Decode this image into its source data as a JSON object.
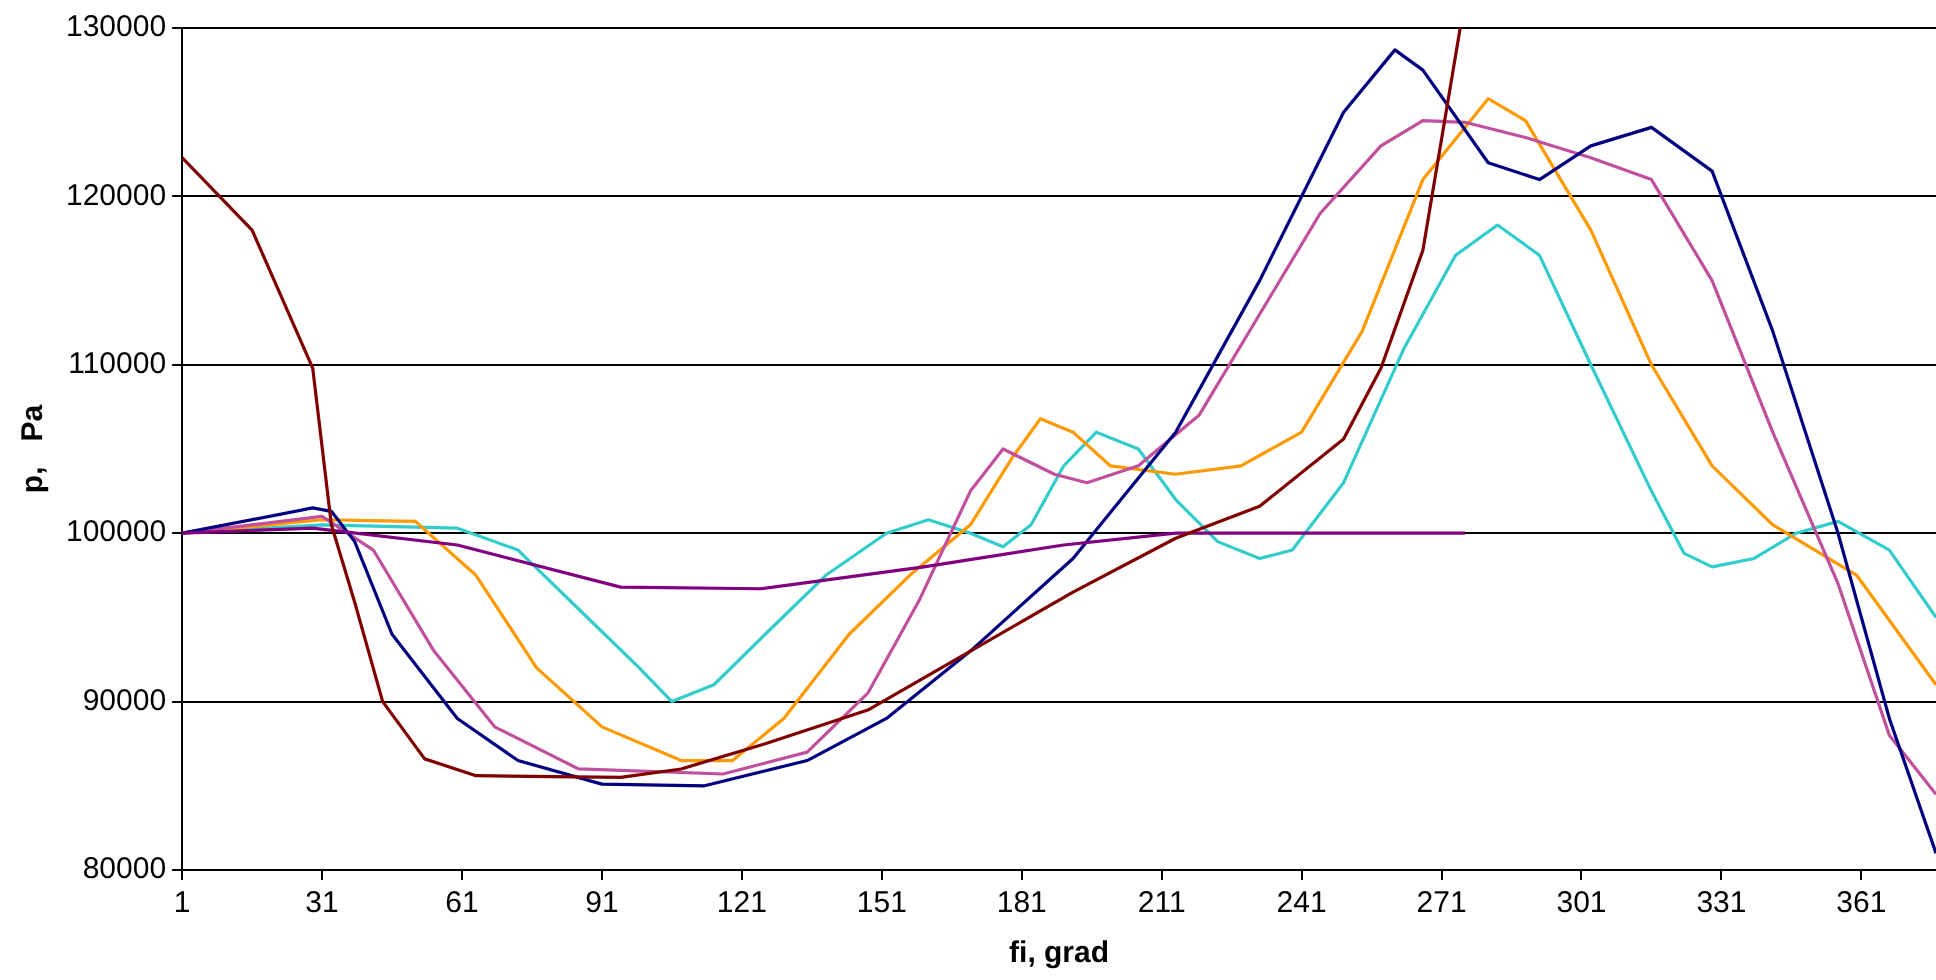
{
  "chart_data": {
    "type": "line",
    "xlabel": "fi, grad",
    "ylabel": "p,   Pa",
    "xlim": [
      1,
      377
    ],
    "xticks": [
      1,
      31,
      61,
      91,
      121,
      151,
      181,
      211,
      241,
      271,
      301,
      331,
      361
    ],
    "ylim": [
      80000,
      130000
    ],
    "yticks": [
      80000,
      90000,
      100000,
      110000,
      120000,
      130000
    ],
    "grid": "y",
    "legend": false,
    "marker": "none",
    "line_style": "solid",
    "series": [
      {
        "color": "#800000",
        "x": [
          1,
          16,
          29,
          33,
          38,
          44,
          53,
          64,
          95,
          108,
          126,
          148,
          170,
          192,
          214,
          232,
          250,
          258,
          267,
          275
        ],
        "values": [
          122300,
          118000,
          109800,
          100500,
          95900,
          90000,
          86600,
          85600,
          85500,
          86000,
          87500,
          89500,
          93000,
          96500,
          99700,
          101600,
          105600,
          109800,
          116800,
          130000
        ]
      },
      {
        "color": "#800080",
        "x": [
          1,
          29,
          60,
          95,
          125,
          160,
          190,
          214,
          240,
          276
        ],
        "values": [
          100000,
          100300,
          99300,
          96800,
          96700,
          98000,
          99300,
          100000,
          100000,
          100000
        ]
      },
      {
        "color": "#000080",
        "x": [
          1,
          29,
          33,
          38,
          46,
          60,
          73,
          91,
          113,
          135,
          152,
          170,
          192,
          214,
          232,
          250,
          261,
          267,
          281,
          292,
          303,
          316,
          329,
          342,
          356,
          367,
          377
        ],
        "values": [
          100000,
          101500,
          101300,
          99500,
          94000,
          89000,
          86500,
          85100,
          85000,
          86500,
          89000,
          93000,
          98500,
          106000,
          115000,
          125000,
          128700,
          127500,
          122000,
          121000,
          123000,
          124100,
          121500,
          112000,
          100000,
          89000,
          81000
        ]
      },
      {
        "color": "#c0509e",
        "x": [
          1,
          31,
          42,
          55,
          68,
          86,
          117,
          135,
          148,
          159,
          170,
          177,
          188,
          195,
          206,
          219,
          232,
          245,
          258,
          267,
          276,
          289,
          303,
          316,
          329,
          342,
          356,
          367,
          377
        ],
        "values": [
          100000,
          101000,
          99000,
          93000,
          88500,
          86000,
          85700,
          87000,
          90500,
          96000,
          102500,
          105000,
          103500,
          103000,
          104000,
          107000,
          113000,
          119000,
          123000,
          124500,
          124400,
          123500,
          122300,
          121000,
          115000,
          106000,
          97000,
          88000,
          84500
        ]
      },
      {
        "color": "#ff9900",
        "x": [
          1,
          31,
          51,
          64,
          77,
          91,
          108,
          119,
          130,
          144,
          157,
          170,
          179,
          185,
          192,
          200,
          214,
          228,
          241,
          254,
          267,
          281,
          289,
          303,
          316,
          329,
          342,
          360,
          377
        ],
        "values": [
          100000,
          100800,
          100700,
          97500,
          92000,
          88500,
          86500,
          86500,
          89000,
          94000,
          97500,
          100500,
          104500,
          106800,
          106000,
          104000,
          103500,
          104000,
          106000,
          112000,
          121000,
          125800,
          124500,
          118000,
          110000,
          104000,
          100500,
          97500,
          91000
        ]
      },
      {
        "color": "#33cccc",
        "x": [
          1,
          31,
          60,
          73,
          86,
          99,
          106,
          115,
          126,
          139,
          152,
          161,
          170,
          177,
          183,
          190,
          197,
          206,
          214,
          223,
          232,
          239,
          250,
          263,
          274,
          283,
          292,
          303,
          316,
          323,
          329,
          338,
          347,
          356,
          367,
          377
        ],
        "values": [
          100000,
          100500,
          100300,
          99000,
          95500,
          92000,
          90000,
          91000,
          94000,
          97500,
          100000,
          100800,
          100000,
          99200,
          100500,
          104000,
          106000,
          105000,
          102000,
          99500,
          98500,
          99000,
          103000,
          111000,
          116500,
          118300,
          116500,
          110000,
          102500,
          98800,
          98000,
          98500,
          100000,
          100700,
          99000,
          95000
        ]
      }
    ]
  }
}
